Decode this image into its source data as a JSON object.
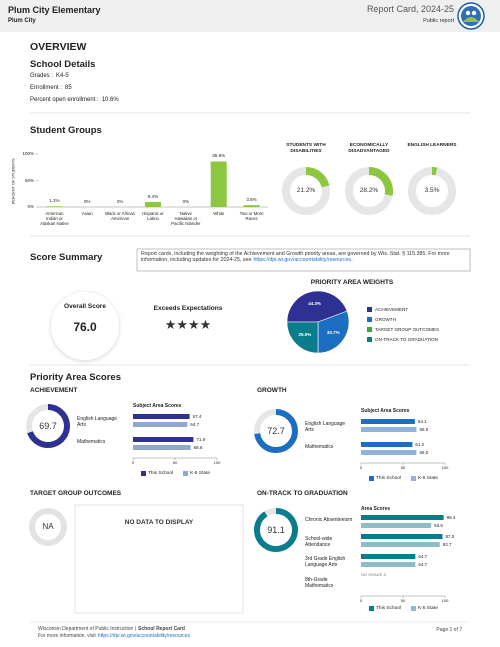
{
  "header": {
    "school": "Plum City Elementary",
    "district": "Plum City",
    "title": "Report Card, 2024-25",
    "subtitle": "Public report"
  },
  "overview": {
    "heading": "OVERVIEW",
    "section": "School Details",
    "details": [
      {
        "label": "Grades :",
        "value": "K4-5"
      },
      {
        "label": "Enrollment :",
        "value": "85"
      },
      {
        "label": "Percent open enrollment :",
        "value": "10.6%"
      }
    ]
  },
  "student_groups": {
    "title": "Student Groups",
    "chart": {
      "type": "bar",
      "y_label": "PERCENT OF STUDENTS",
      "categories": [
        "American Indian or Alaskan Native",
        "Asian",
        "Black or African American",
        "Hispanic or Latino",
        "Native Hawaiian or Pacific Islander",
        "White",
        "Two or More Races"
      ],
      "values": [
        1.2,
        0,
        0,
        9.4,
        0,
        85.9,
        3.5
      ],
      "value_labels": [
        "1.2%",
        "0%",
        "0%",
        "9.4%",
        "0%",
        "85.9%",
        "3.5%"
      ],
      "color": "#8dc63f",
      "ylim": [
        0,
        100
      ],
      "yticks": [
        {
          "value": 0,
          "label": "0%"
        },
        {
          "value": 50,
          "label": "50%"
        },
        {
          "value": 100,
          "label": "100%"
        }
      ]
    },
    "donuts": {
      "type": "donut",
      "color": "#8dc63f",
      "items": [
        {
          "label": "STUDENTS WITH DISABILITIES",
          "value": 21.2,
          "value_label": "21.2%"
        },
        {
          "label": "ECONOMICALLY DISADVANTAGED",
          "value": 28.2,
          "value_label": "28.2%"
        },
        {
          "label": "ENGLISH LEARNERS",
          "value": 3.5,
          "value_label": "3.5%"
        }
      ]
    }
  },
  "score_summary": {
    "title": "Score Summary",
    "note": "Report cards, including the weighting of the Achievement and Growth priority areas, are governed by Wis. Stat. § 115.385. For more information, including updates for 2024-25, see",
    "note_link": "https://dpi.wi.gov/accountability/resources",
    "note_end": ".",
    "overall_label": "Overall Score",
    "overall_score": "76.0",
    "rating": "Exceeds Expectations",
    "stars": "★★★★",
    "weights": {
      "type": "pie",
      "title": "PRIORITY AREA WEIGHTS",
      "labels": [
        "ACHIEVEMENT",
        "GROWTH",
        "TARGET GROUP OUTCOMES",
        "ON-TRACK TO GRADUATION"
      ],
      "values": [
        44.3,
        30.7,
        0,
        25.0
      ],
      "value_labels": [
        "44.3%",
        "30.7%",
        null,
        "25.0%"
      ],
      "colors": [
        "#2e3192",
        "#1b6ec2",
        "#3aaa35",
        "#0a7d8c"
      ]
    }
  },
  "priority_scores": {
    "title": "Priority Area Scores",
    "achievement": {
      "title": "ACHIEVEMENT",
      "score": 69.7,
      "color": "#2e3192",
      "chart": {
        "type": "hbar",
        "title": "Subject Area Scores",
        "categories": [
          "English Language Arts",
          "Mathematics"
        ],
        "series": [
          {
            "name": "This School",
            "color": "#2e3192",
            "values": [
              67.4,
              71.9
            ],
            "value_labels": [
              "67.4",
              "71.9"
            ]
          },
          {
            "name": "K-5 State",
            "color": "#8fa8cc",
            "values": [
              64.7,
              68.6
            ],
            "value_labels": [
              "64.7",
              "68.6"
            ]
          }
        ],
        "xlim": [
          0,
          100
        ],
        "xticks": [
          0,
          50,
          100
        ]
      }
    },
    "growth": {
      "title": "GROWTH",
      "score": 72.7,
      "color": "#1b6ec2",
      "chart": {
        "type": "hbar",
        "title": "Subject Area Scores",
        "categories": [
          "English Language Arts",
          "Mathematics"
        ],
        "series": [
          {
            "name": "This School",
            "color": "#1b6ec2",
            "values": [
              64.1,
              61.2
            ],
            "value_labels": [
              "64.1",
              "61.2"
            ]
          },
          {
            "name": "K-5 State",
            "color": "#8fb3dc",
            "values": [
              66.0,
              66.0
            ],
            "value_labels": [
              "66.0",
              "66.0"
            ]
          }
        ],
        "xlim": [
          0,
          100
        ],
        "xticks": [
          0,
          50,
          100
        ]
      }
    },
    "target_group": {
      "title": "TARGET GROUP OUTCOMES",
      "score": "NA",
      "message": "NO DATA TO DISPLAY"
    },
    "on_track": {
      "title": "ON-TRACK TO GRADUATION",
      "score": 91.1,
      "color": "#0a7d8c",
      "chart": {
        "type": "hbar",
        "title": "Area Scores",
        "categories": [
          "Chronic Absenteeism",
          "School-wide Attendance",
          "3rd Grade English Language Arts",
          "8th-Grade Mathematics"
        ],
        "series": [
          {
            "name": "This School",
            "color": "#0a7d8c",
            "values": [
              98.4,
              97.0,
              64.7,
              null
            ],
            "value_labels": [
              "98.4",
              "97.0",
              "64.7",
              null
            ]
          },
          {
            "name": "K-5 State",
            "color": "#8dbcc4",
            "values": [
              83.5,
              93.7,
              64.7,
              null
            ],
            "value_labels": [
              "83.5",
              "93.7",
              "64.7",
              null
            ]
          }
        ],
        "xlim": [
          0,
          100
        ],
        "xticks": [
          0,
          50,
          100
        ],
        "missing_label": "NO GRADE 8"
      }
    }
  },
  "footer": {
    "org": "Wisconsin Department of Public Instruction |",
    "doc": "School Report Card",
    "more": "For more information, visit",
    "link": "https://dpi.wi.gov/accountability/resources",
    "page": "Page 1 of 7"
  }
}
